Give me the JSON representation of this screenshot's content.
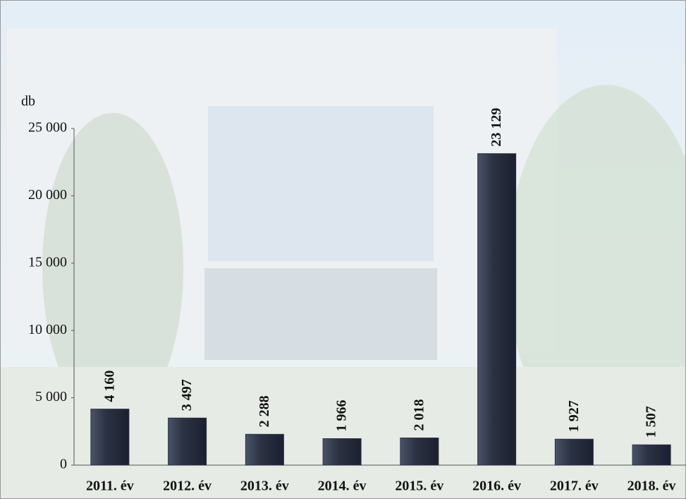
{
  "chart_data": {
    "type": "bar",
    "y_label": "db",
    "categories": [
      "2011. év",
      "2012. év",
      "2013. év",
      "2014. év",
      "2015. év",
      "2016. év",
      "2017. év",
      "2018. év"
    ],
    "values": [
      4160,
      3497,
      2288,
      1966,
      2018,
      23129,
      1927,
      1507
    ],
    "value_labels": [
      "4 160",
      "3 497",
      "2 288",
      "1 966",
      "2 018",
      "23 129",
      "1 927",
      "1 507"
    ],
    "color": "#2b3242",
    "ylim": [
      0,
      25000
    ],
    "yticks": [
      0,
      {
        "value": 5000,
        "label": "5 000"
      },
      {
        "value": 10000,
        "label": "10 000"
      },
      {
        "value": 15000,
        "label": "15 000"
      },
      {
        "value": 20000,
        "label": "20 000"
      },
      {
        "value": 25000,
        "label": "25 000"
      }
    ]
  }
}
